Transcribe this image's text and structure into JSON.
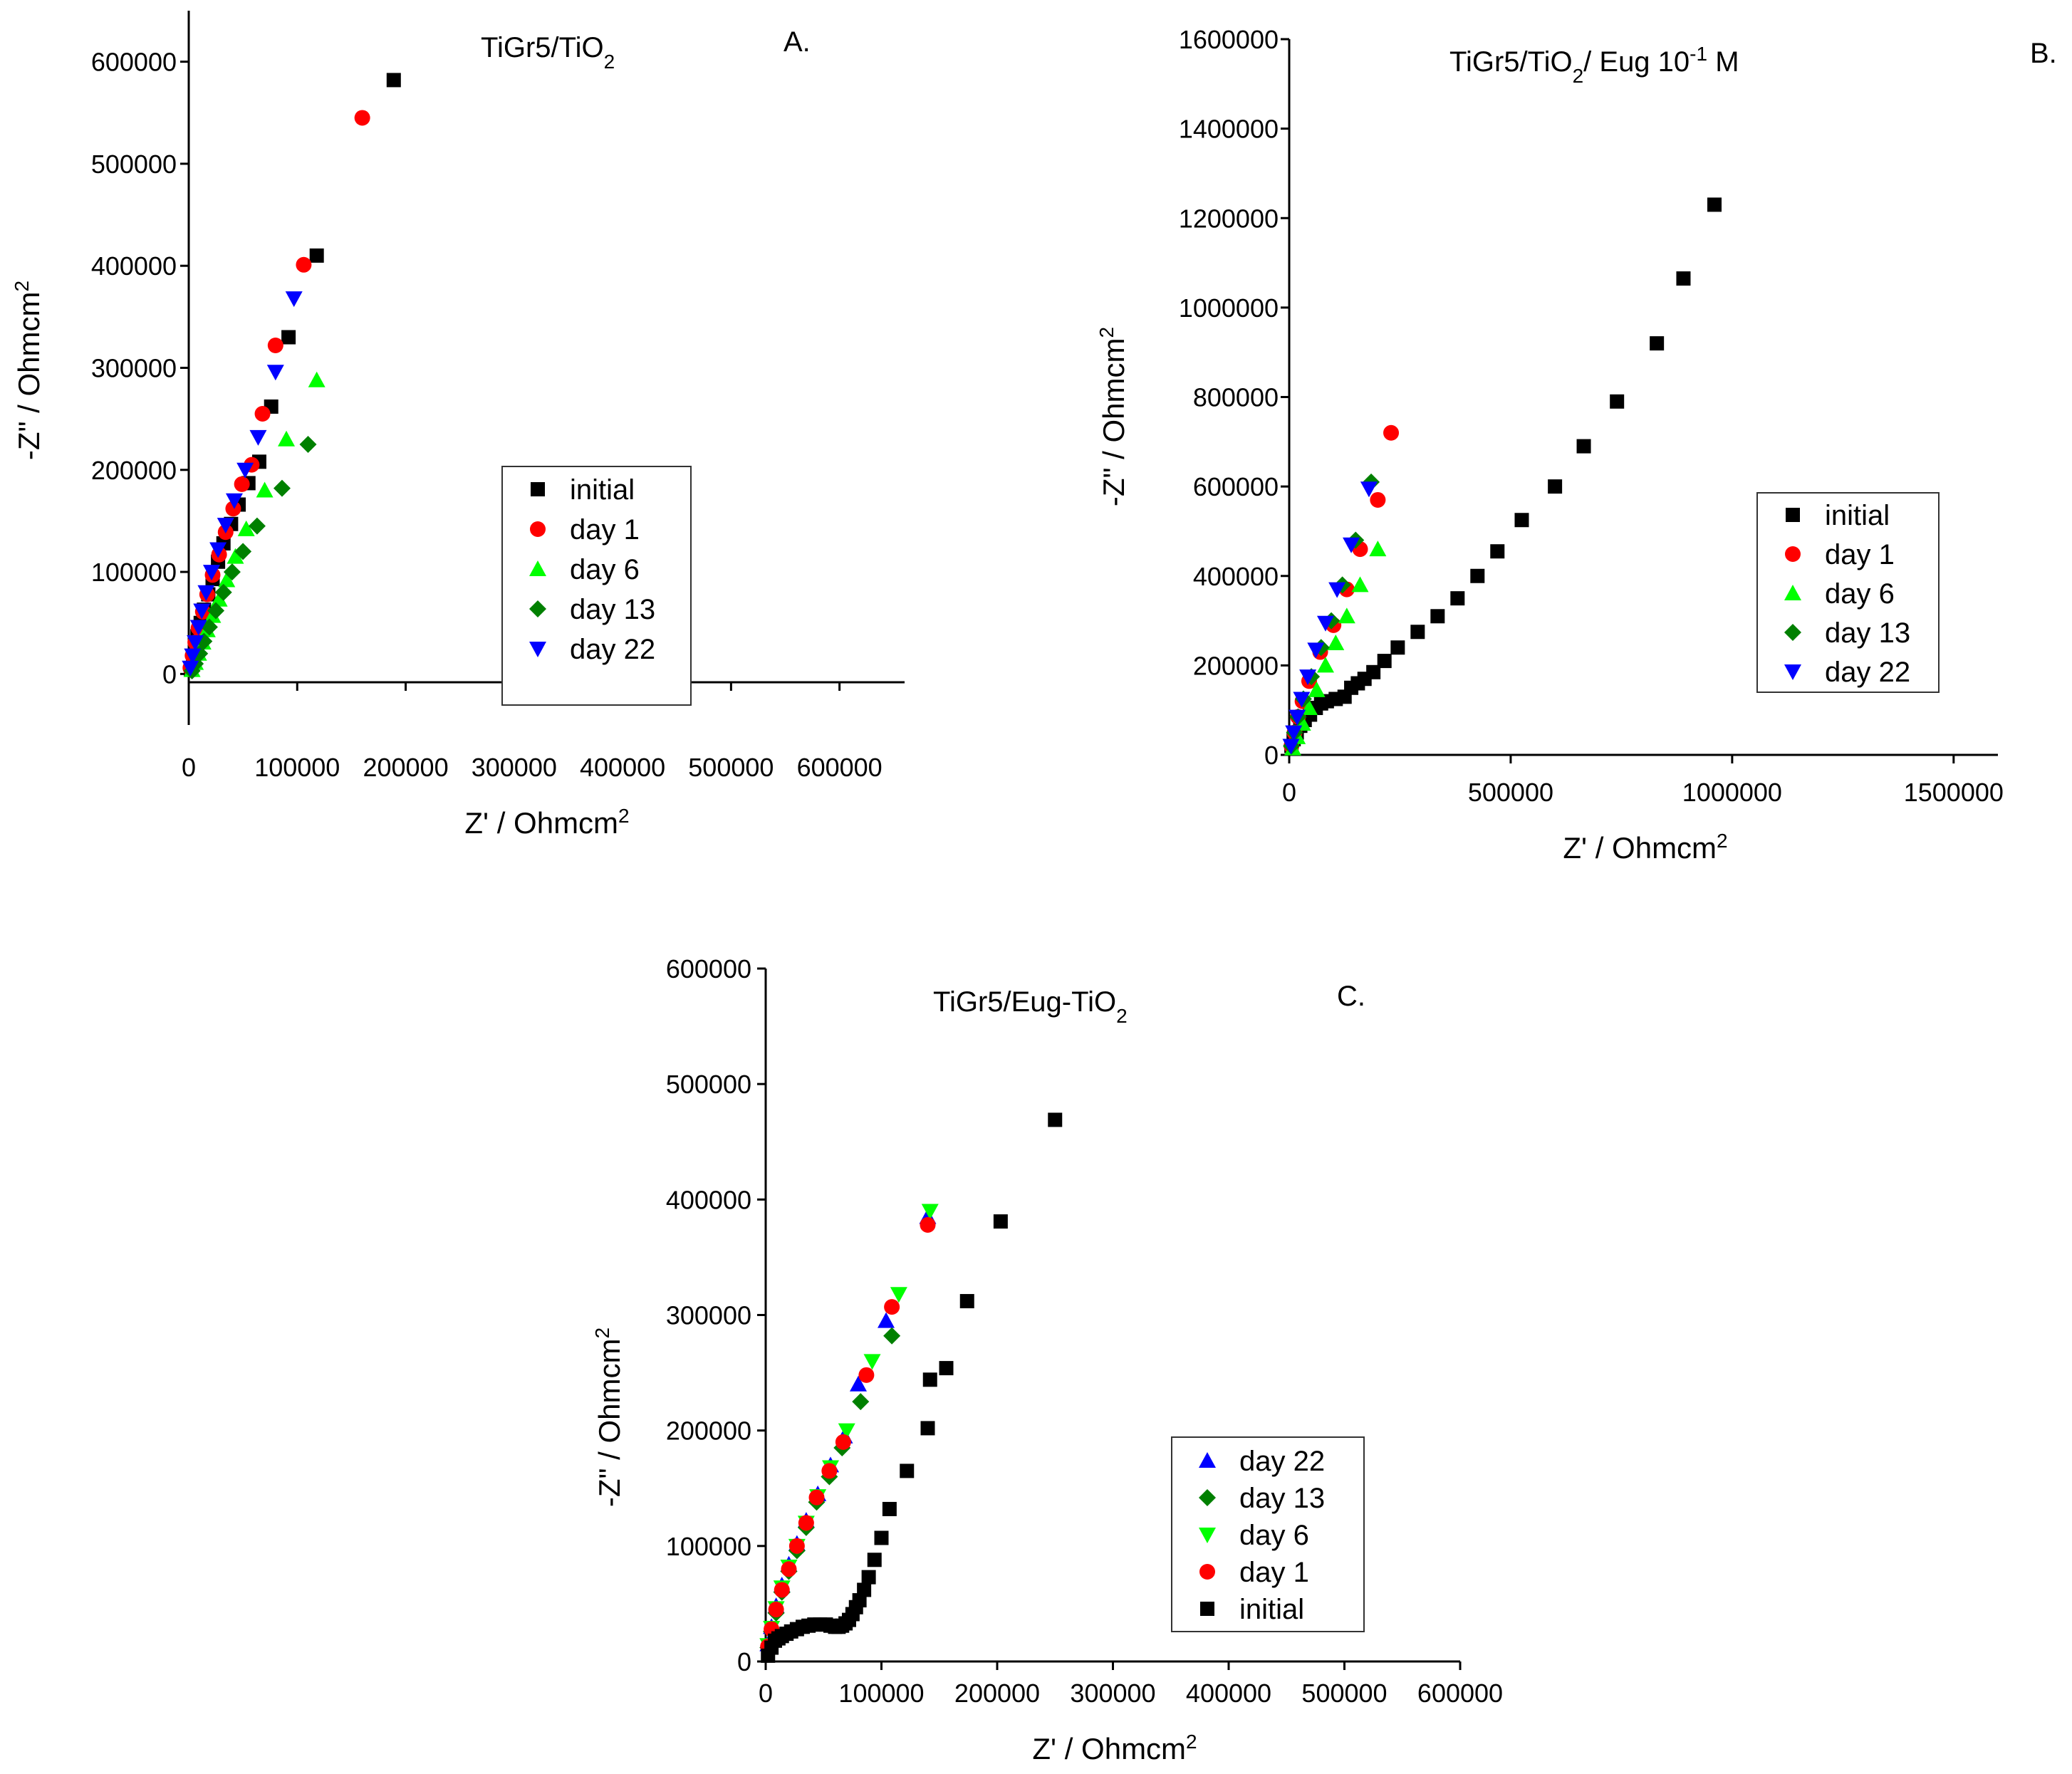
{
  "chart_data": [
    {
      "panel": "A.",
      "type": "scatter",
      "title": {
        "main": "TiGr5/TiO",
        "sub": "2",
        "tail": ""
      },
      "xlabel": "Z' / Ohmcm",
      "xlabel_sup": "2",
      "ylabel": "-Z\" / Ohmcm",
      "ylabel_sup": "2",
      "xlim": [
        0,
        660000
      ],
      "ylim": [
        -50000,
        650000
      ],
      "xticks": [
        0,
        100000,
        200000,
        300000,
        400000,
        500000,
        600000
      ],
      "xtick_labels": [
        "0",
        "100000",
        "200000",
        "300000",
        "400000",
        "500000",
        "600000"
      ],
      "yticks": [
        0,
        100000,
        200000,
        300000,
        400000,
        500000,
        600000
      ],
      "ytick_labels": [
        "0",
        "100000",
        "200000",
        "300000",
        "400000",
        "500000",
        "600000"
      ],
      "legend_position": "center-right",
      "series": [
        {
          "name": "initial",
          "color": "#000000",
          "marker": "square",
          "x": [
            2000,
            4000,
            6000,
            8000,
            11000,
            14000,
            18000,
            22000,
            27000,
            32000,
            39000,
            46000,
            55000,
            65000,
            76000,
            92000,
            118000,
            189000
          ],
          "y": [
            5000,
            15000,
            25000,
            37000,
            50000,
            63000,
            78000,
            93000,
            110000,
            128000,
            147000,
            166000,
            187000,
            208000,
            262000,
            330000,
            410000,
            582000
          ]
        },
        {
          "name": "day 1",
          "color": "#ff0000",
          "marker": "circle",
          "x": [
            1500,
            3500,
            6000,
            9000,
            13000,
            17000,
            22000,
            28000,
            34000,
            41000,
            49000,
            58000,
            68000,
            80000,
            106000,
            160000
          ],
          "y": [
            6000,
            18000,
            31000,
            45000,
            61000,
            78000,
            97000,
            117000,
            139000,
            162000,
            186000,
            205000,
            255000,
            322000,
            401000,
            545000
          ]
        },
        {
          "name": "day 6",
          "color": "#00ff00",
          "marker": "triangle-up",
          "x": [
            3000,
            6000,
            9000,
            13000,
            17000,
            22000,
            28000,
            35000,
            43000,
            53000,
            70000,
            90000,
            118000
          ],
          "y": [
            4000,
            11000,
            20000,
            31000,
            43000,
            57000,
            73000,
            92000,
            115000,
            142000,
            180000,
            230000,
            288000
          ]
        },
        {
          "name": "day 13",
          "color": "#008000",
          "marker": "diamond",
          "x": [
            3000,
            6000,
            10000,
            14000,
            19000,
            25000,
            32000,
            40000,
            50000,
            63000,
            86000,
            110000
          ],
          "y": [
            3000,
            10000,
            20000,
            32000,
            46000,
            62000,
            80000,
            100000,
            120000,
            145000,
            182000,
            225000
          ]
        },
        {
          "name": "day 22",
          "color": "#0000ff",
          "marker": "triangle-down",
          "x": [
            1500,
            3500,
            6000,
            9000,
            12000,
            16000,
            21000,
            27000,
            34000,
            42000,
            52000,
            64000,
            80000,
            97000
          ],
          "y": [
            6000,
            18000,
            31000,
            46000,
            62000,
            80000,
            100000,
            122000,
            146000,
            170000,
            200000,
            232000,
            296000,
            368000
          ]
        }
      ]
    },
    {
      "panel": "B.",
      "type": "scatter",
      "title": {
        "main": "TiGr5/TiO",
        "sub": "2",
        "tail": "/ Eug 10",
        "sup": "-1",
        "end": " M"
      },
      "xlabel": "Z' / Ohmcm",
      "xlabel_sup": "2",
      "ylabel": "-Z\" / Ohmcm",
      "ylabel_sup": "2",
      "xlim": [
        0,
        1600000
      ],
      "ylim": [
        0,
        1600000
      ],
      "xticks": [
        0,
        500000,
        1000000,
        1500000
      ],
      "xtick_labels": [
        "0",
        "500000",
        "1000000",
        "1500000"
      ],
      "yticks": [
        0,
        200000,
        400000,
        600000,
        800000,
        1000000,
        1200000,
        1400000,
        1600000
      ],
      "ytick_labels": [
        "0",
        "200000",
        "400000",
        "600000",
        "800000",
        "1000000",
        "1200000",
        "1400000",
        "1600000"
      ],
      "legend_position": "center-right",
      "series": [
        {
          "name": "initial",
          "color": "#000000",
          "marker": "square",
          "x": [
            5000,
            10000,
            17000,
            25000,
            35000,
            47000,
            60000,
            72000,
            85000,
            105000,
            125000,
            140000,
            155000,
            170000,
            190000,
            215000,
            245000,
            290000,
            335000,
            380000,
            425000,
            470000,
            525000,
            600000,
            665000,
            740000,
            830000,
            890000,
            960000
          ],
          "y": [
            20000,
            35000,
            50000,
            65000,
            78000,
            90000,
            105000,
            115000,
            120000,
            125000,
            130000,
            150000,
            160000,
            170000,
            185000,
            210000,
            240000,
            275000,
            310000,
            350000,
            400000,
            455000,
            525000,
            600000,
            690000,
            790000,
            920000,
            1065000,
            1230000
          ]
        },
        {
          "name": "day 1",
          "color": "#ff0000",
          "marker": "circle",
          "x": [
            5000,
            12000,
            20000,
            30000,
            45000,
            70000,
            100000,
            130000,
            160000,
            200000,
            230000
          ],
          "y": [
            20000,
            50000,
            85000,
            120000,
            165000,
            230000,
            290000,
            370000,
            460000,
            570000,
            720000
          ]
        },
        {
          "name": "day 6",
          "color": "#00ff00",
          "marker": "triangle-up",
          "x": [
            8000,
            18000,
            30000,
            45000,
            62000,
            82000,
            105000,
            130000,
            160000,
            200000
          ],
          "y": [
            15000,
            40000,
            70000,
            105000,
            145000,
            200000,
            250000,
            310000,
            380000,
            460000
          ]
        },
        {
          "name": "day 13",
          "color": "#008000",
          "marker": "diamond",
          "x": [
            5000,
            12000,
            20000,
            32000,
            50000,
            72000,
            95000,
            120000,
            150000,
            185000
          ],
          "y": [
            20000,
            50000,
            85000,
            125000,
            175000,
            240000,
            300000,
            380000,
            480000,
            610000
          ]
        },
        {
          "name": "day 22",
          "color": "#0000ff",
          "marker": "triangle-down",
          "x": [
            4000,
            10000,
            18000,
            28000,
            42000,
            60000,
            82000,
            108000,
            140000,
            180000
          ],
          "y": [
            20000,
            50000,
            85000,
            125000,
            175000,
            235000,
            295000,
            370000,
            470000,
            595000
          ]
        }
      ]
    },
    {
      "panel": "C.",
      "type": "scatter",
      "title": {
        "main": "TiGr5/Eug-TiO",
        "sub": "2",
        "tail": ""
      },
      "xlabel": "Z' / Ohmcm",
      "xlabel_sup": "2",
      "ylabel": "-Z\" / Ohmcm",
      "ylabel_sup": "2",
      "xlim": [
        0,
        600000
      ],
      "ylim": [
        0,
        600000
      ],
      "xticks": [
        0,
        100000,
        200000,
        300000,
        400000,
        500000,
        600000
      ],
      "xtick_labels": [
        "0",
        "100000",
        "200000",
        "300000",
        "400000",
        "500000",
        "600000"
      ],
      "yticks": [
        0,
        100000,
        200000,
        300000,
        400000,
        500000,
        600000
      ],
      "ytick_labels": [
        "0",
        "100000",
        "200000",
        "300000",
        "400000",
        "500000",
        "600000"
      ],
      "legend_position": "lower-right",
      "series": [
        {
          "name": "day 22",
          "color": "#0000ff",
          "marker": "triangle-up",
          "x": [
            2000,
            5000,
            9000,
            14000,
            20000,
            27000,
            35000,
            45000,
            56000,
            68000,
            80000,
            104000,
            140000
          ],
          "y": [
            15000,
            30000,
            48000,
            66000,
            84000,
            102000,
            122000,
            145000,
            170000,
            195000,
            240000,
            295000,
            385000
          ]
        },
        {
          "name": "day 13",
          "color": "#008000",
          "marker": "diamond",
          "x": [
            2000,
            5000,
            9000,
            14000,
            20000,
            27000,
            35000,
            44000,
            55000,
            66000,
            82000,
            109000
          ],
          "y": [
            12000,
            26000,
            42000,
            60000,
            78000,
            96000,
            116000,
            138000,
            160000,
            185000,
            225000,
            282000
          ]
        },
        {
          "name": "day 6",
          "color": "#00ff00",
          "marker": "triangle-down",
          "x": [
            2000,
            5000,
            9000,
            14000,
            20000,
            27000,
            35000,
            45000,
            56000,
            70000,
            92000,
            115000,
            142000
          ],
          "y": [
            14000,
            29000,
            46000,
            64000,
            82000,
            100000,
            120000,
            143000,
            168000,
            200000,
            260000,
            318000,
            390000
          ]
        },
        {
          "name": "day 1",
          "color": "#ff0000",
          "marker": "circle",
          "x": [
            2000,
            5000,
            9000,
            14000,
            20000,
            27000,
            35000,
            44000,
            55000,
            67000,
            87000,
            109000,
            140000
          ],
          "y": [
            13000,
            28000,
            45000,
            62000,
            80000,
            100000,
            120000,
            142000,
            165000,
            190000,
            248000,
            307000,
            378000
          ]
        },
        {
          "name": "initial",
          "color": "#000000",
          "marker": "square",
          "x": [
            2000,
            5000,
            8000,
            11000,
            14000,
            18000,
            22000,
            27000,
            32000,
            37000,
            42000,
            47000,
            52000,
            56000,
            60000,
            63000,
            66000,
            69000,
            72000,
            75000,
            78000,
            81000,
            85000,
            89000,
            94000,
            100000,
            107000,
            122000,
            140000,
            142000,
            156000,
            174000,
            203000,
            250000
          ],
          "y": [
            5000,
            12000,
            18000,
            20000,
            22000,
            24000,
            26000,
            28000,
            30000,
            31000,
            32000,
            32000,
            32000,
            31000,
            30000,
            30000,
            31000,
            33000,
            36000,
            41000,
            47000,
            53000,
            62000,
            73000,
            88000,
            107000,
            132000,
            165000,
            202000,
            244000,
            254000,
            312000,
            381000,
            469000
          ]
        }
      ]
    }
  ]
}
